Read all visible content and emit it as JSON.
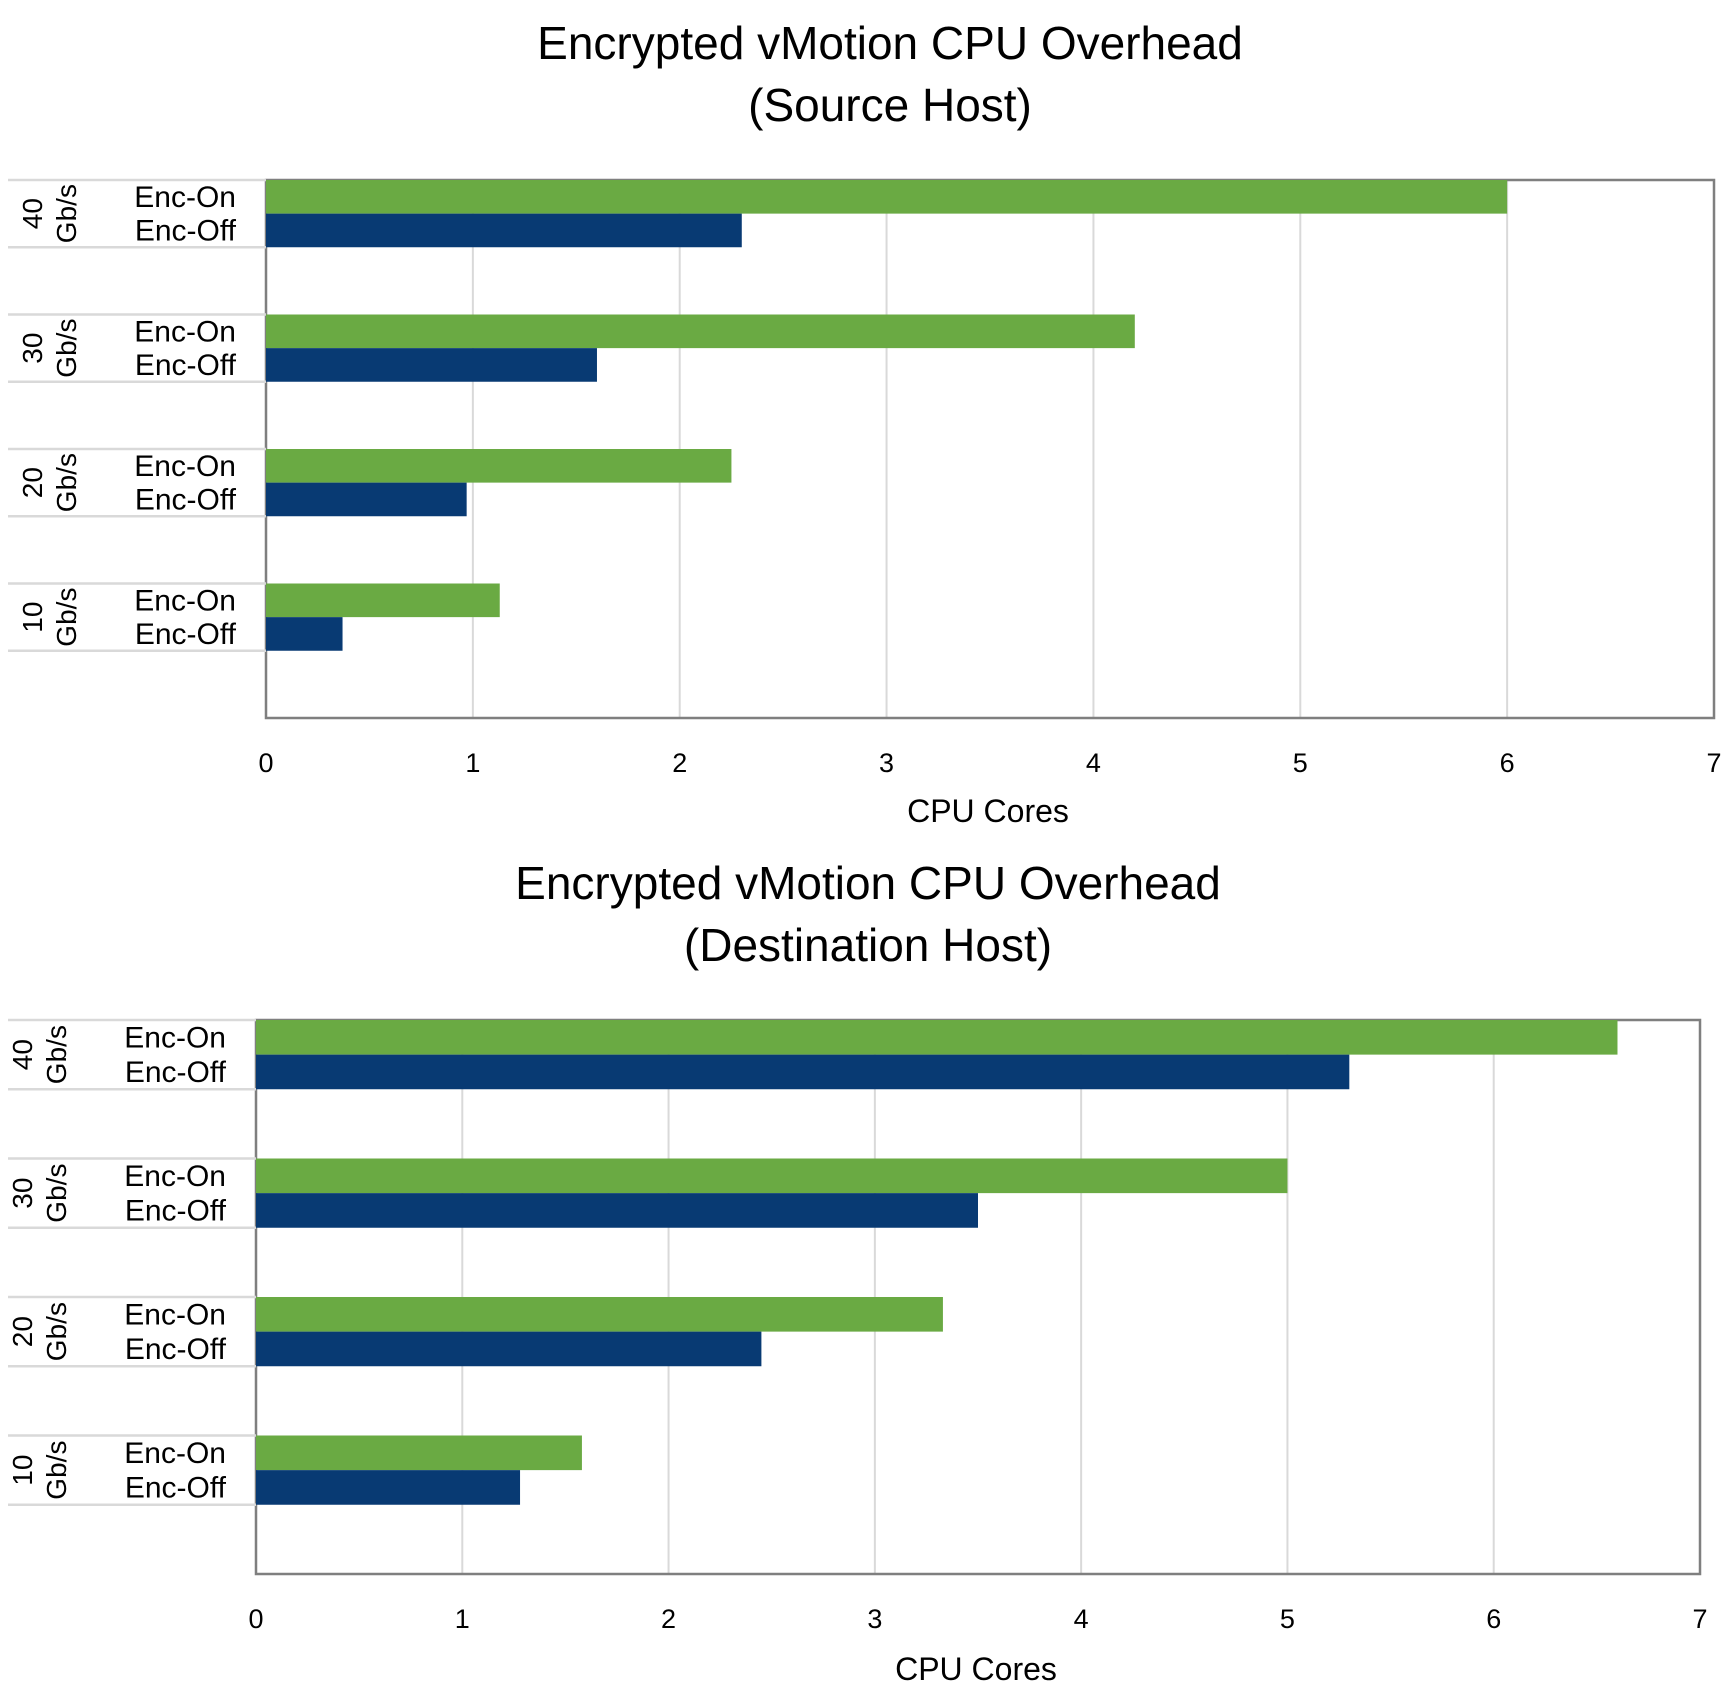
{
  "colors": {
    "enc_on": "#6aaa43",
    "enc_off": "#083a73",
    "grid": "#d9d9d9",
    "frame": "#7f7f7f"
  },
  "chart_data": [
    {
      "type": "bar",
      "orientation": "horizontal",
      "title": "Encrypted vMotion CPU Overhead",
      "subtitle": "(Source Host)",
      "xlabel": "CPU Cores",
      "ylabel": "",
      "xlim": [
        0,
        7
      ],
      "xticks": [
        "0",
        "1",
        "2",
        "3",
        "4",
        "5",
        "6",
        "7"
      ],
      "grid": "vertical",
      "legend": "none",
      "groups": [
        {
          "value": "40",
          "unit": "Gb/s",
          "bars": [
            {
              "label": "Enc-On",
              "value": 6.0
            },
            {
              "label": "Enc-Off",
              "value": 2.3
            }
          ]
        },
        {
          "value": "30",
          "unit": "Gb/s",
          "bars": [
            {
              "label": "Enc-On",
              "value": 4.2
            },
            {
              "label": "Enc-Off",
              "value": 1.6
            }
          ]
        },
        {
          "value": "20",
          "unit": "Gb/s",
          "bars": [
            {
              "label": "Enc-On",
              "value": 2.25
            },
            {
              "label": "Enc-Off",
              "value": 0.97
            }
          ]
        },
        {
          "value": "10",
          "unit": "Gb/s",
          "bars": [
            {
              "label": "Enc-On",
              "value": 1.13
            },
            {
              "label": "Enc-Off",
              "value": 0.37
            }
          ]
        }
      ]
    },
    {
      "type": "bar",
      "orientation": "horizontal",
      "title": "Encrypted vMotion CPU Overhead",
      "subtitle": "(Destination Host)",
      "xlabel": "CPU Cores",
      "ylabel": "",
      "xlim": [
        0,
        7
      ],
      "xticks": [
        "0",
        "1",
        "2",
        "3",
        "4",
        "5",
        "6",
        "7"
      ],
      "grid": "vertical",
      "legend": "none",
      "groups": [
        {
          "value": "40",
          "unit": "Gb/s",
          "bars": [
            {
              "label": "Enc-On",
              "value": 6.6
            },
            {
              "label": "Enc-Off",
              "value": 5.3
            }
          ]
        },
        {
          "value": "30",
          "unit": "Gb/s",
          "bars": [
            {
              "label": "Enc-On",
              "value": 5.0
            },
            {
              "label": "Enc-Off",
              "value": 3.5
            }
          ]
        },
        {
          "value": "20",
          "unit": "Gb/s",
          "bars": [
            {
              "label": "Enc-On",
              "value": 3.33
            },
            {
              "label": "Enc-Off",
              "value": 2.45
            }
          ]
        },
        {
          "value": "10",
          "unit": "Gb/s",
          "bars": [
            {
              "label": "Enc-On",
              "value": 1.58
            },
            {
              "label": "Enc-Off",
              "value": 1.28
            }
          ]
        }
      ]
    }
  ]
}
